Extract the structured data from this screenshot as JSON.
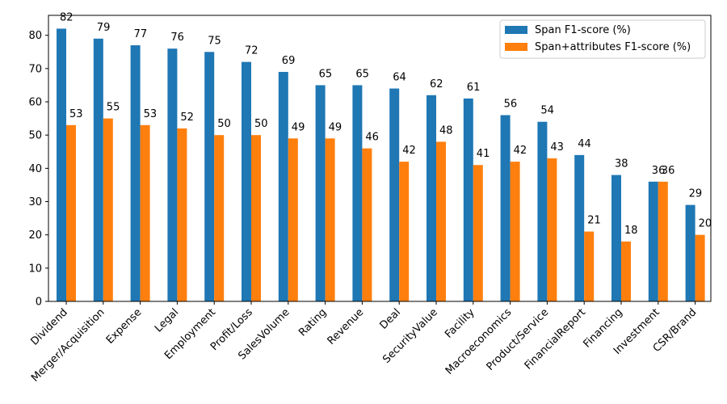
{
  "chart_data": {
    "type": "bar",
    "title": "",
    "xlabel": "",
    "ylabel": "",
    "ylim": [
      0,
      86
    ],
    "yticks": [
      0,
      10,
      20,
      30,
      40,
      50,
      60,
      70,
      80
    ],
    "grid": false,
    "legend_position": "top-right",
    "categories": [
      "Dividend",
      "Merger/Acquisition",
      "Expense",
      "Legal",
      "Employment",
      "Profit/Loss",
      "SalesVolume",
      "Rating",
      "Revenue",
      "Deal",
      "SecurityValue",
      "Facility",
      "Macroeconomics",
      "Product/Service",
      "FinancialReport",
      "Financing",
      "Investment",
      "CSR/Brand"
    ],
    "series": [
      {
        "name": "Span F1-score (%)",
        "color": "#1f77b4",
        "values": [
          82,
          79,
          77,
          76,
          75,
          72,
          69,
          65,
          65,
          64,
          62,
          61,
          56,
          54,
          44,
          38,
          36,
          29
        ]
      },
      {
        "name": "Span+attributes F1-score (%)",
        "color": "#ff7f0e",
        "values": [
          53,
          55,
          53,
          52,
          50,
          50,
          49,
          49,
          46,
          42,
          48,
          41,
          42,
          43,
          21,
          18,
          36,
          20
        ]
      }
    ]
  }
}
